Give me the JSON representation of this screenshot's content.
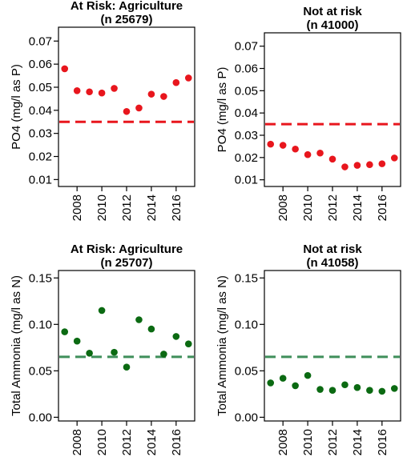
{
  "chart_data": [
    {
      "type": "scatter",
      "title": "At Risk: Agriculture",
      "subtitle": "(n 25679)",
      "ylabel": "PO4 (mg/l as P)",
      "xlabel": "",
      "x": [
        2007,
        2008,
        2009,
        2010,
        2011,
        2012,
        2013,
        2014,
        2015,
        2016,
        2017
      ],
      "values": [
        0.058,
        0.0485,
        0.048,
        0.0475,
        0.0495,
        0.0395,
        0.041,
        0.047,
        0.046,
        0.052,
        0.054
      ],
      "reference_line": 0.035,
      "xlim": [
        2006.5,
        2017.5
      ],
      "ylim": [
        0.007,
        0.076
      ],
      "xticks": [
        2008,
        2010,
        2012,
        2014,
        2016
      ],
      "yticks": [
        "0.01",
        "0.02",
        "0.03",
        "0.04",
        "0.05",
        "0.06",
        "0.07"
      ],
      "point_color": "#e8161d",
      "line_color": "#e8161d"
    },
    {
      "type": "scatter",
      "title": "Not at risk",
      "subtitle": "(n 41000)",
      "ylabel": "PO4 (mg/l as P)",
      "xlabel": "",
      "x": [
        2007,
        2008,
        2009,
        2010,
        2011,
        2012,
        2013,
        2014,
        2015,
        2016,
        2017
      ],
      "values": [
        0.026,
        0.0255,
        0.0238,
        0.0213,
        0.022,
        0.0193,
        0.0158,
        0.0165,
        0.0168,
        0.0172,
        0.0198
      ],
      "reference_line": 0.035,
      "xlim": [
        2006.5,
        2017.5
      ],
      "ylim": [
        0.007,
        0.076
      ],
      "xticks": [
        2008,
        2010,
        2012,
        2014,
        2016
      ],
      "yticks": [
        "0.01",
        "0.02",
        "0.03",
        "0.04",
        "0.05",
        "0.06",
        "0.07"
      ],
      "point_color": "#e8161d",
      "line_color": "#e8161d"
    },
    {
      "type": "scatter",
      "title": "At Risk: Agriculture",
      "subtitle": "(n 25707)",
      "ylabel": "Total Ammonia (mg/l as N)",
      "xlabel": "",
      "x": [
        2007,
        2008,
        2009,
        2010,
        2011,
        2012,
        2013,
        2014,
        2015,
        2016,
        2017
      ],
      "values": [
        0.092,
        0.082,
        0.069,
        0.115,
        0.07,
        0.054,
        0.105,
        0.095,
        0.068,
        0.087,
        0.079
      ],
      "reference_line": 0.065,
      "xlim": [
        2006.5,
        2017.5
      ],
      "ylim": [
        -0.004,
        0.158
      ],
      "xticks": [
        2008,
        2010,
        2012,
        2014,
        2016
      ],
      "yticks": [
        "0.00",
        "0.05",
        "0.10",
        "0.15"
      ],
      "point_color": "#0b6a12",
      "line_color": "#3f8f5a"
    },
    {
      "type": "scatter",
      "title": "Not at risk",
      "subtitle": "(n 41058)",
      "ylabel": "Total Ammonia (mg/l as N)",
      "xlabel": "",
      "x": [
        2007,
        2008,
        2009,
        2010,
        2011,
        2012,
        2013,
        2014,
        2015,
        2016,
        2017
      ],
      "values": [
        0.037,
        0.042,
        0.034,
        0.045,
        0.03,
        0.029,
        0.035,
        0.032,
        0.029,
        0.028,
        0.031
      ],
      "reference_line": 0.065,
      "xlim": [
        2006.5,
        2017.5
      ],
      "ylim": [
        -0.004,
        0.158
      ],
      "xticks": [
        2008,
        2010,
        2012,
        2014,
        2016
      ],
      "yticks": [
        "0.00",
        "0.05",
        "0.10",
        "0.15"
      ],
      "point_color": "#0b6a12",
      "line_color": "#3f8f5a"
    }
  ]
}
